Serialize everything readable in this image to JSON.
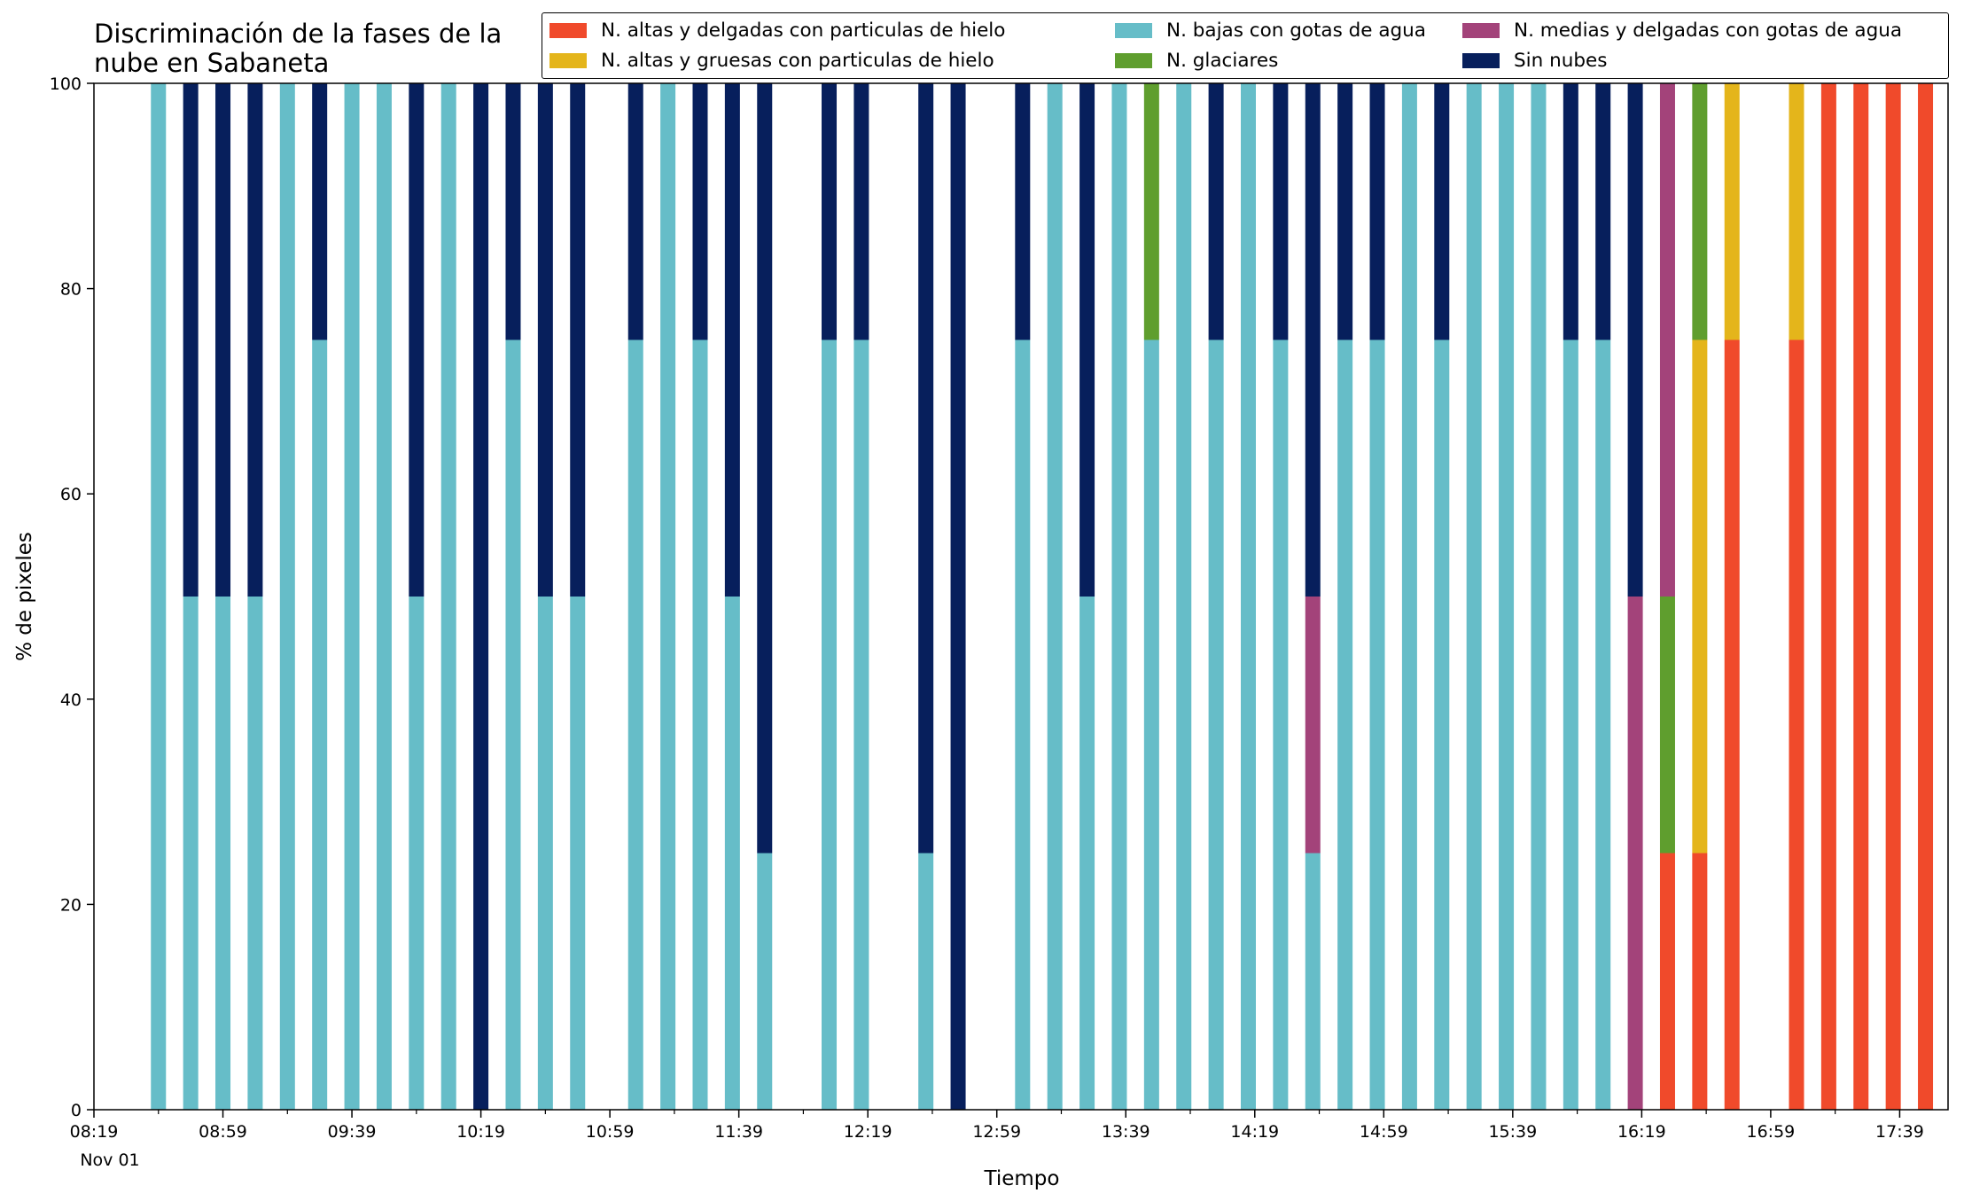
{
  "chart_data": {
    "type": "bar",
    "stacked": true,
    "title": "Discriminación de la fases de la\nnube en Sabaneta",
    "xlabel": "Tiempo",
    "ylabel": "% de pixeles",
    "ylim": [
      0,
      100
    ],
    "yticks": [
      0,
      20,
      40,
      60,
      80,
      100
    ],
    "x_tick_labels": [
      "08:19",
      "08:59",
      "09:39",
      "10:19",
      "10:59",
      "11:39",
      "12:19",
      "12:59",
      "13:39",
      "14:19",
      "14:59",
      "15:39",
      "16:19",
      "16:59",
      "17:39"
    ],
    "x_date_label": "Nov 01",
    "x_range_minutes": [
      "08:19",
      "17:54"
    ],
    "grid": false,
    "legend_position": "top",
    "categories": [
      "08:39",
      "08:49",
      "08:59",
      "09:09",
      "09:19",
      "09:29",
      "09:39",
      "09:49",
      "09:59",
      "10:09",
      "10:19",
      "10:29",
      "10:39",
      "10:49",
      "11:07",
      "11:17",
      "11:27",
      "11:37",
      "11:47",
      "12:07",
      "12:17",
      "12:37",
      "12:47",
      "13:07",
      "13:17",
      "13:27",
      "13:37",
      "13:47",
      "13:57",
      "14:07",
      "14:17",
      "14:27",
      "14:37",
      "14:47",
      "14:57",
      "15:07",
      "15:17",
      "15:27",
      "15:37",
      "15:47",
      "15:57",
      "16:07",
      "16:17",
      "16:27",
      "16:37",
      "16:47",
      "17:07",
      "17:17",
      "17:27",
      "17:37",
      "17:47"
    ],
    "series": [
      {
        "name": "N. altas y delgadas con particulas de hielo",
        "color": "#f04a2b",
        "values": [
          0,
          0,
          0,
          0,
          0,
          0,
          0,
          0,
          0,
          0,
          0,
          0,
          0,
          0,
          0,
          0,
          0,
          0,
          0,
          0,
          0,
          0,
          0,
          0,
          0,
          0,
          0,
          0,
          0,
          0,
          0,
          0,
          0,
          0,
          0,
          0,
          0,
          0,
          0,
          0,
          0,
          0,
          0,
          25,
          25,
          75,
          75,
          100,
          100,
          100,
          100
        ]
      },
      {
        "name": "N. altas y gruesas con particulas de hielo",
        "color": "#e4b51b",
        "values": [
          0,
          0,
          0,
          0,
          0,
          0,
          0,
          0,
          0,
          0,
          0,
          0,
          0,
          0,
          0,
          0,
          0,
          0,
          0,
          0,
          0,
          0,
          0,
          0,
          0,
          0,
          0,
          0,
          0,
          0,
          0,
          0,
          0,
          0,
          0,
          0,
          0,
          0,
          0,
          0,
          0,
          0,
          0,
          0,
          50,
          25,
          25,
          0,
          0,
          0,
          0
        ]
      },
      {
        "name": "N. bajas con gotas de agua",
        "color": "#66bdc8",
        "values": [
          100,
          50,
          50,
          50,
          100,
          75,
          100,
          100,
          50,
          100,
          0,
          75,
          50,
          50,
          75,
          100,
          75,
          50,
          25,
          75,
          75,
          25,
          0,
          75,
          100,
          50,
          100,
          75,
          100,
          75,
          100,
          75,
          25,
          75,
          75,
          100,
          75,
          100,
          100,
          100,
          75,
          75,
          0,
          0,
          0,
          0,
          0,
          0,
          0,
          0,
          0
        ]
      },
      {
        "name": "N. glaciares",
        "color": "#5f9e2e",
        "values": [
          0,
          0,
          0,
          0,
          0,
          0,
          0,
          0,
          0,
          0,
          0,
          0,
          0,
          0,
          0,
          0,
          0,
          0,
          0,
          0,
          0,
          0,
          0,
          0,
          0,
          0,
          0,
          25,
          0,
          0,
          0,
          0,
          0,
          0,
          0,
          0,
          0,
          0,
          0,
          0,
          0,
          0,
          0,
          25,
          25,
          0,
          0,
          0,
          0,
          0,
          0
        ]
      },
      {
        "name": "N. medias y delgadas con gotas de agua",
        "color": "#a3437a",
        "values": [
          0,
          0,
          0,
          0,
          0,
          0,
          0,
          0,
          0,
          0,
          0,
          0,
          0,
          0,
          0,
          0,
          0,
          0,
          0,
          0,
          0,
          0,
          0,
          0,
          0,
          0,
          0,
          0,
          0,
          0,
          0,
          0,
          25,
          0,
          0,
          0,
          0,
          0,
          0,
          0,
          0,
          0,
          50,
          50,
          0,
          0,
          0,
          0,
          0,
          0,
          0
        ]
      },
      {
        "name": "Sin nubes",
        "color": "#071f5c",
        "values": [
          0,
          50,
          50,
          50,
          0,
          25,
          0,
          0,
          50,
          0,
          100,
          25,
          50,
          50,
          25,
          0,
          25,
          50,
          75,
          25,
          25,
          75,
          100,
          25,
          0,
          50,
          0,
          0,
          0,
          25,
          0,
          25,
          50,
          25,
          25,
          0,
          25,
          0,
          0,
          0,
          25,
          25,
          50,
          0,
          0,
          0,
          0,
          0,
          0,
          0,
          0
        ]
      }
    ]
  }
}
